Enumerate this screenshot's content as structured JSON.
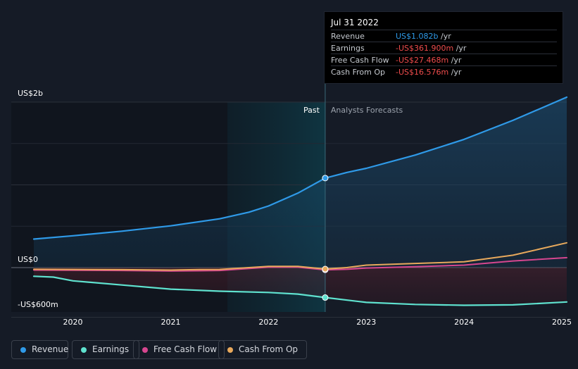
{
  "tooltip": {
    "date": "Jul 31 2022",
    "rows": [
      {
        "label": "Revenue",
        "value": "US$1.082b",
        "unit": "/yr",
        "color": "#2f9ae8"
      },
      {
        "label": "Earnings",
        "value": "-US$361.900m",
        "unit": "/yr",
        "color": "#ef4c4c"
      },
      {
        "label": "Free Cash Flow",
        "value": "-US$27.468m",
        "unit": "/yr",
        "color": "#ef4c4c"
      },
      {
        "label": "Cash From Op",
        "value": "-US$16.576m",
        "unit": "/yr",
        "color": "#ef4c4c"
      }
    ]
  },
  "legend": [
    {
      "label": "Revenue",
      "color": "#2f9ae8"
    },
    {
      "label": "Earnings",
      "color": "#5fe2cf"
    },
    {
      "label": "Free Cash Flow",
      "color": "#d6468f"
    },
    {
      "label": "Cash From Op",
      "color": "#e8a95c"
    }
  ],
  "chart_data": {
    "type": "line",
    "y_axis_labels": [
      "US$2b",
      "US$0",
      "-US$600m"
    ],
    "ylim": [
      -600,
      2000
    ],
    "y_unit": "US$m",
    "xlim": [
      2019.6,
      2025.05
    ],
    "x_tick_labels": [
      "2020",
      "2021",
      "2022",
      "2023",
      "2024",
      "2025"
    ],
    "x_ticks": [
      2020,
      2021,
      2022,
      2023,
      2024,
      2025
    ],
    "past_label": "Past",
    "forecast_label": "Analysts Forecasts",
    "past_boundary": 2022.58,
    "highlight_start": 2021.58,
    "grid": "horizontal",
    "legend_position": "bottom-left",
    "series": [
      {
        "name": "Revenue",
        "color": "#2f9ae8",
        "fill": true,
        "points": [
          [
            2019.6,
            345
          ],
          [
            2020.0,
            385
          ],
          [
            2020.5,
            440
          ],
          [
            2021.0,
            505
          ],
          [
            2021.5,
            590
          ],
          [
            2021.8,
            670
          ],
          [
            2022.0,
            745
          ],
          [
            2022.3,
            900
          ],
          [
            2022.58,
            1082
          ],
          [
            2022.8,
            1150
          ],
          [
            2023.0,
            1200
          ],
          [
            2023.5,
            1360
          ],
          [
            2024.0,
            1550
          ],
          [
            2024.5,
            1780
          ],
          [
            2025.05,
            2060
          ]
        ]
      },
      {
        "name": "Earnings",
        "color": "#5fe2cf",
        "fill": true,
        "points": [
          [
            2019.6,
            -105
          ],
          [
            2019.8,
            -115
          ],
          [
            2020.0,
            -160
          ],
          [
            2020.5,
            -210
          ],
          [
            2021.0,
            -260
          ],
          [
            2021.5,
            -285
          ],
          [
            2022.0,
            -300
          ],
          [
            2022.3,
            -320
          ],
          [
            2022.58,
            -362
          ],
          [
            2023.0,
            -420
          ],
          [
            2023.5,
            -445
          ],
          [
            2024.0,
            -455
          ],
          [
            2024.5,
            -450
          ],
          [
            2025.05,
            -415
          ]
        ]
      },
      {
        "name": "Free Cash Flow",
        "color": "#d6468f",
        "fill": false,
        "points": [
          [
            2019.6,
            -30
          ],
          [
            2020.0,
            -32
          ],
          [
            2020.5,
            -35
          ],
          [
            2021.0,
            -42
          ],
          [
            2021.3,
            -38
          ],
          [
            2021.5,
            -35
          ],
          [
            2022.0,
            5
          ],
          [
            2022.3,
            5
          ],
          [
            2022.58,
            -27
          ],
          [
            2022.8,
            -20
          ],
          [
            2023.0,
            -5
          ],
          [
            2023.5,
            10
          ],
          [
            2024.0,
            30
          ],
          [
            2024.5,
            80
          ],
          [
            2025.05,
            120
          ]
        ]
      },
      {
        "name": "Cash From Op",
        "color": "#e8a95c",
        "fill": false,
        "points": [
          [
            2019.6,
            -20
          ],
          [
            2020.0,
            -22
          ],
          [
            2020.5,
            -25
          ],
          [
            2021.0,
            -30
          ],
          [
            2021.3,
            -24
          ],
          [
            2021.5,
            -22
          ],
          [
            2022.0,
            15
          ],
          [
            2022.3,
            15
          ],
          [
            2022.58,
            -17
          ],
          [
            2022.8,
            0
          ],
          [
            2023.0,
            30
          ],
          [
            2023.5,
            50
          ],
          [
            2024.0,
            70
          ],
          [
            2024.5,
            150
          ],
          [
            2025.05,
            300
          ]
        ]
      }
    ]
  }
}
